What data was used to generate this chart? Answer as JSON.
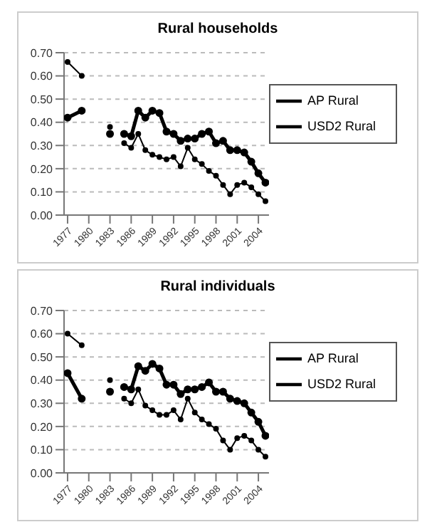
{
  "chart_data": [
    {
      "type": "line",
      "title": "Rural households",
      "x": [
        1977,
        1979,
        1981,
        1983,
        1984,
        1985,
        1986,
        1987,
        1988,
        1989,
        1990,
        1991,
        1992,
        1993,
        1994,
        1995,
        1996,
        1997,
        1998,
        1999,
        2000,
        2001,
        2002,
        2003,
        2004,
        2005
      ],
      "series": [
        {
          "name": "AP Rural",
          "color": "#000000",
          "values": [
            0.42,
            0.45,
            null,
            0.35,
            null,
            0.35,
            0.34,
            0.45,
            0.42,
            0.45,
            0.44,
            0.36,
            0.35,
            0.32,
            0.33,
            0.33,
            0.35,
            0.36,
            0.31,
            0.32,
            0.28,
            0.28,
            0.27,
            0.23,
            0.18,
            0.14
          ]
        },
        {
          "name": "USD2 Rural",
          "color": "#000000",
          "values": [
            0.66,
            0.6,
            null,
            0.38,
            null,
            0.31,
            0.29,
            0.35,
            0.28,
            0.26,
            0.25,
            0.24,
            0.25,
            0.21,
            0.29,
            0.24,
            0.22,
            0.19,
            0.17,
            0.13,
            0.09,
            0.13,
            0.14,
            0.12,
            0.09,
            0.06
          ]
        }
      ],
      "xlim": [
        1976.5,
        2005.5
      ],
      "xticks": [
        1977,
        1980,
        1983,
        1986,
        1989,
        1992,
        1995,
        1998,
        2001,
        2004
      ],
      "ylim": [
        0,
        0.7
      ],
      "yticks": [
        {
          "value": 0,
          "label": "0.00"
        },
        {
          "value": 0.1,
          "label": "0.10"
        },
        {
          "value": 0.2,
          "label": "0.20"
        },
        {
          "value": 0.3,
          "label": "0.30"
        },
        {
          "value": 0.4,
          "label": "0.40"
        },
        {
          "value": 0.5,
          "label": "0.50"
        },
        {
          "value": 0.6,
          "label": "0.60"
        },
        {
          "value": 0.7,
          "label": "0.70"
        }
      ],
      "grid": "y",
      "legend": "top right",
      "marker": "circle",
      "line_style": "solid"
    },
    {
      "type": "line",
      "title": "Rural individuals",
      "x": [
        1977,
        1979,
        1981,
        1983,
        1984,
        1985,
        1986,
        1987,
        1988,
        1989,
        1990,
        1991,
        1992,
        1993,
        1994,
        1995,
        1996,
        1997,
        1998,
        1999,
        2000,
        2001,
        2002,
        2003,
        2004,
        2005
      ],
      "series": [
        {
          "name": "AP Rural",
          "color": "#000000",
          "values": [
            0.43,
            0.32,
            null,
            0.35,
            null,
            0.37,
            0.36,
            0.46,
            0.44,
            0.47,
            0.45,
            0.38,
            0.38,
            0.34,
            0.36,
            0.36,
            0.37,
            0.39,
            0.35,
            0.35,
            0.32,
            0.31,
            0.3,
            0.26,
            0.22,
            0.16
          ]
        },
        {
          "name": "USD2 Rural",
          "color": "#000000",
          "values": [
            0.6,
            0.55,
            null,
            0.4,
            null,
            0.32,
            0.3,
            0.36,
            0.29,
            0.27,
            0.25,
            0.25,
            0.27,
            0.23,
            0.32,
            0.26,
            0.23,
            0.21,
            0.19,
            0.14,
            0.1,
            0.15,
            0.16,
            0.14,
            0.1,
            0.07
          ]
        }
      ],
      "xlim": [
        1976.5,
        2005.5
      ],
      "xticks": [
        1977,
        1980,
        1983,
        1986,
        1989,
        1992,
        1995,
        1998,
        2001,
        2004
      ],
      "ylim": [
        0,
        0.7
      ],
      "yticks": [
        {
          "value": 0,
          "label": "0.00"
        },
        {
          "value": 0.1,
          "label": "0.10"
        },
        {
          "value": 0.2,
          "label": "0.20"
        },
        {
          "value": 0.3,
          "label": "0.30"
        },
        {
          "value": 0.4,
          "label": "0.40"
        },
        {
          "value": 0.5,
          "label": "0.50"
        },
        {
          "value": 0.6,
          "label": "0.60"
        },
        {
          "value": 0.7,
          "label": "0.70"
        }
      ],
      "grid": "y",
      "legend": "top right",
      "marker": "circle",
      "line_style": "solid"
    }
  ]
}
